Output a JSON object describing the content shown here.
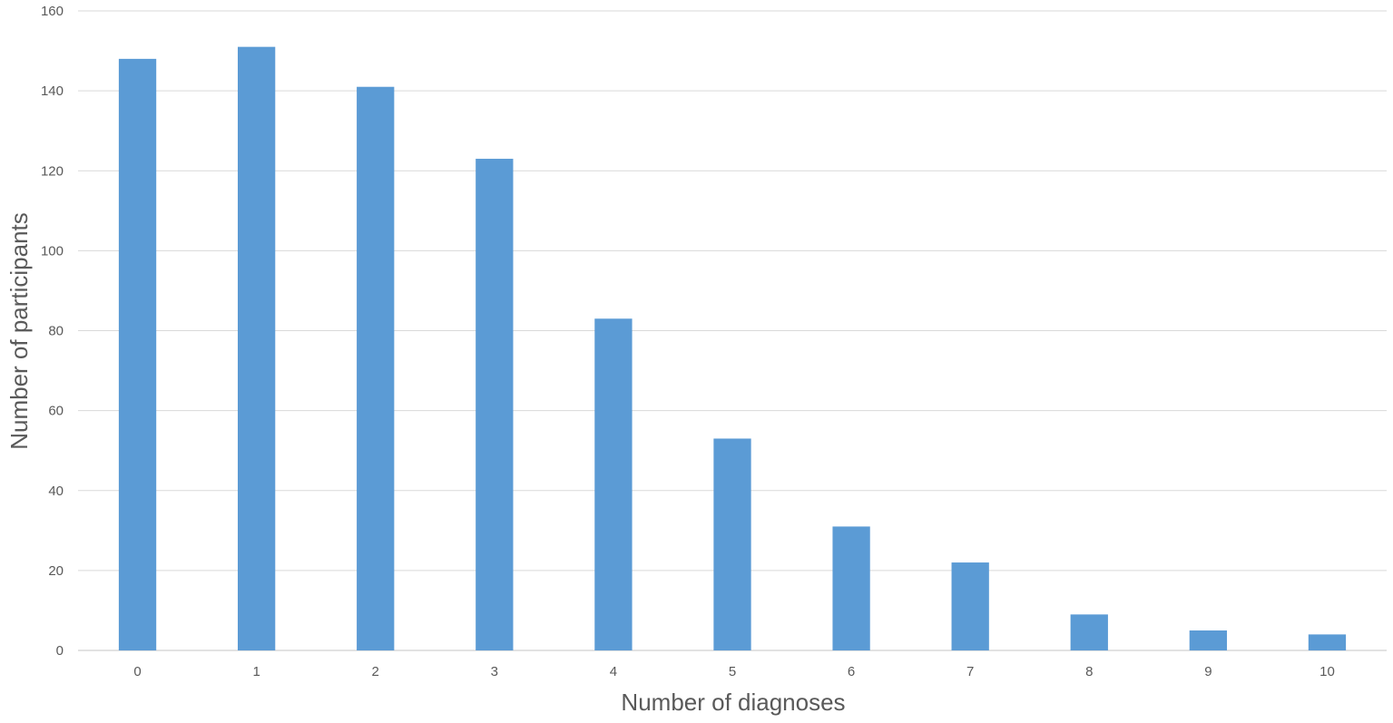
{
  "chart_data": {
    "type": "bar",
    "title": "",
    "xlabel": "Number of diagnoses",
    "ylabel": "Number of participants",
    "categories": [
      "0",
      "1",
      "2",
      "3",
      "4",
      "5",
      "6",
      "7",
      "8",
      "9",
      "10"
    ],
    "values": [
      148,
      151,
      141,
      123,
      83,
      53,
      31,
      22,
      9,
      5,
      4
    ],
    "ylim": [
      0,
      160
    ],
    "yticks": [
      0,
      20,
      40,
      60,
      80,
      100,
      120,
      140,
      160
    ],
    "grid": true,
    "legend": "none",
    "colors": {
      "bar": "#5b9bd5",
      "grid": "#d9d9d9",
      "text": "#595959"
    }
  }
}
